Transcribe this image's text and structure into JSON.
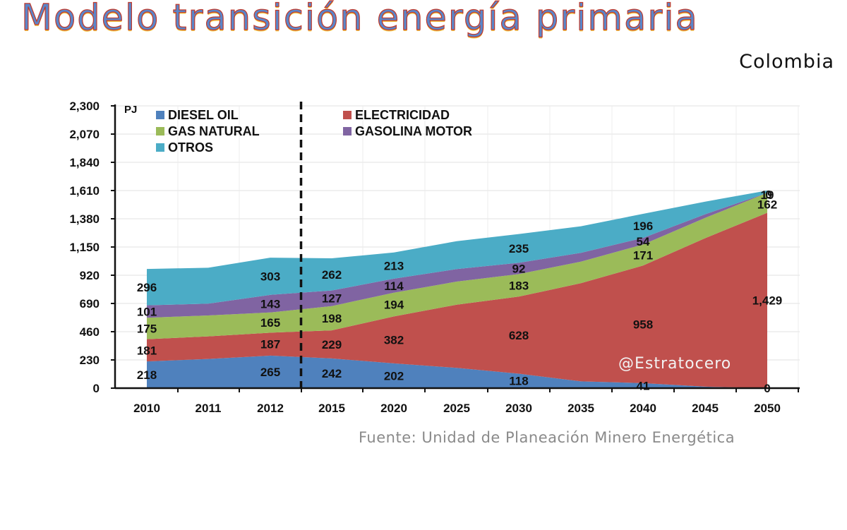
{
  "header": {
    "title": "Modelo transición energía primaria",
    "subtitle": "Colombia"
  },
  "footer": {
    "source": "Fuente: Unidad de Planeación Minero Energética",
    "watermark": "@Estratocero"
  },
  "chart_data": {
    "type": "area",
    "stacked": true,
    "ylabel": "PJ",
    "ylim": [
      0,
      2300
    ],
    "yticks": [
      0,
      230,
      460,
      690,
      920,
      1150,
      1380,
      1610,
      1840,
      2070,
      2300
    ],
    "ytick_labels": [
      "0",
      "230",
      "460",
      "690",
      "920",
      "1,150",
      "1,380",
      "1,610",
      "1,840",
      "2,070",
      "2,300"
    ],
    "categories": [
      "2010",
      "2011",
      "2012",
      "2015",
      "2020",
      "2025",
      "2030",
      "2035",
      "2040",
      "2045",
      "2050"
    ],
    "divider_after_category": "2012",
    "grid": true,
    "legend_position": "top-left",
    "series": [
      {
        "name": "DIESEL OIL",
        "color": "#4f81bd",
        "values": [
          218,
          238,
          265,
          242,
          202,
          165,
          118,
          55,
          41,
          12,
          0
        ],
        "labels": [
          "218",
          "",
          "265",
          "242",
          "202",
          "",
          "118",
          "",
          "41",
          "",
          "0"
        ]
      },
      {
        "name": "ELECTRICIDAD",
        "color": "#c0504d",
        "values": [
          181,
          184,
          187,
          229,
          382,
          515,
          628,
          800,
          958,
          1210,
          1429
        ],
        "labels": [
          "181",
          "",
          "187",
          "229",
          "382",
          "",
          "628",
          "",
          "958",
          "",
          "1,429"
        ]
      },
      {
        "name": "GAS NATURAL",
        "color": "#9bbb59",
        "values": [
          175,
          170,
          165,
          198,
          194,
          188,
          183,
          176,
          171,
          165,
          162
        ],
        "labels": [
          "175",
          "",
          "165",
          "198",
          "194",
          "",
          "183",
          "",
          "171",
          "",
          "162"
        ]
      },
      {
        "name": "GASOLINA MOTOR",
        "color": "#8064a2",
        "values": [
          101,
          96,
          143,
          127,
          114,
          102,
          92,
          72,
          54,
          30,
          0
        ],
        "labels": [
          "101",
          "",
          "143",
          "127",
          "114",
          "",
          "92",
          "",
          "54",
          "",
          "0"
        ]
      },
      {
        "name": "OTROS",
        "color": "#4bacc6",
        "values": [
          296,
          293,
          303,
          262,
          213,
          228,
          235,
          216,
          196,
          103,
          19
        ],
        "labels": [
          "296",
          "",
          "303",
          "262",
          "213",
          "",
          "235",
          "",
          "196",
          "",
          "19"
        ]
      }
    ]
  }
}
